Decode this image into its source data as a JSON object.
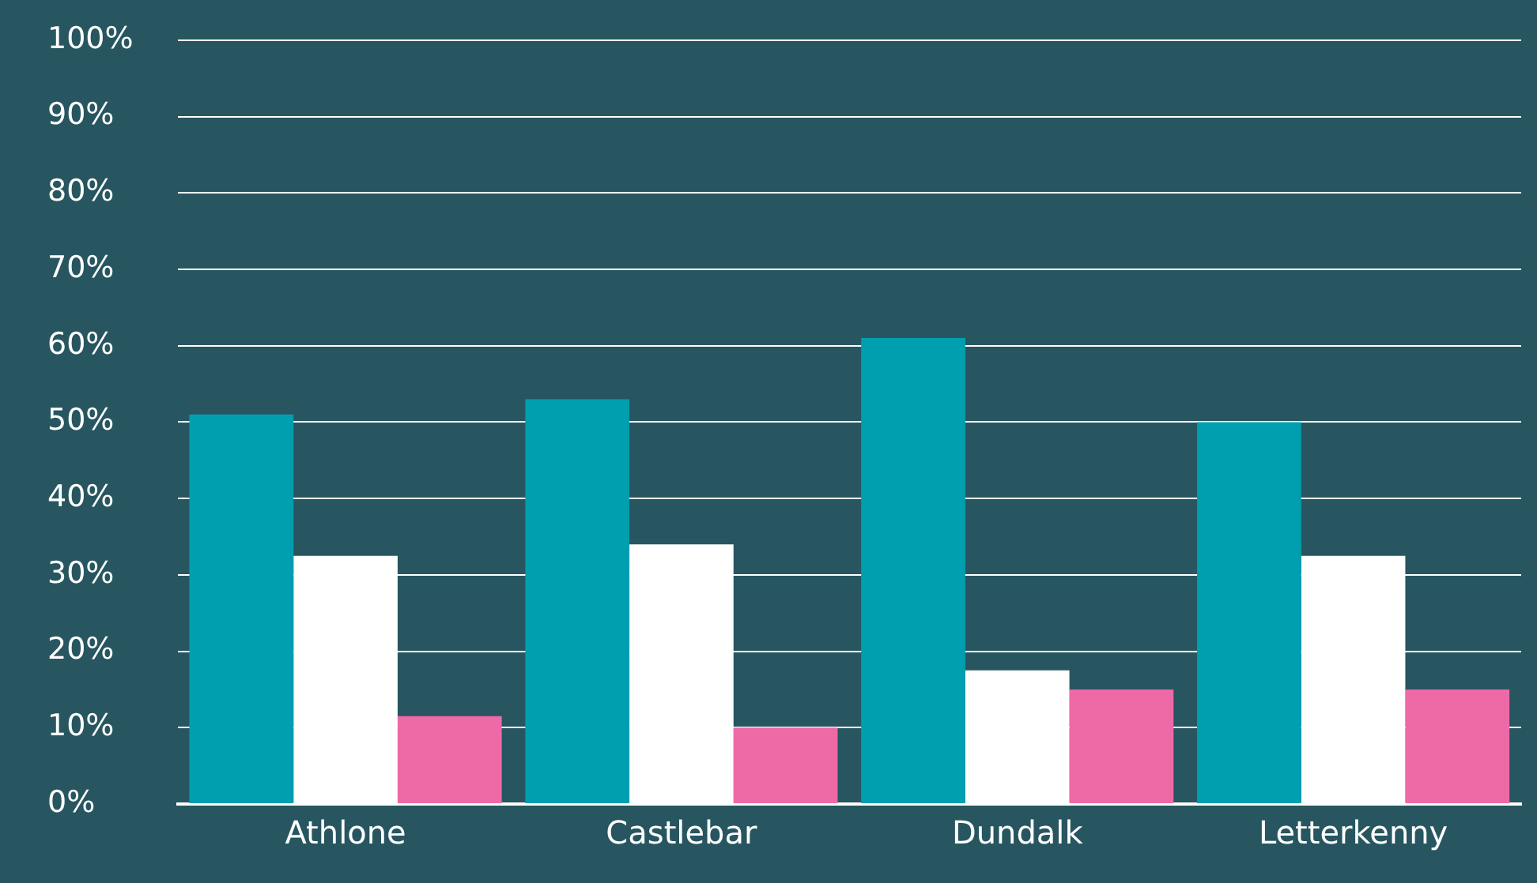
{
  "chart_data": {
    "type": "bar",
    "categories": [
      "Athlone",
      "Castlebar",
      "Dundalk",
      "Letterkenny"
    ],
    "series": [
      {
        "color": "#009fb0",
        "values": [
          51,
          53,
          61,
          50
        ]
      },
      {
        "color": "#ffffff",
        "values": [
          32.5,
          34,
          17.5,
          32.5
        ]
      },
      {
        "color": "#ee6aa7",
        "values": [
          11.5,
          10,
          15,
          15
        ]
      }
    ],
    "ylim": [
      0,
      100
    ],
    "yticks": [
      {
        "value": 0,
        "label": "0%"
      },
      {
        "value": 10,
        "label": "10%"
      },
      {
        "value": 20,
        "label": "20%"
      },
      {
        "value": 30,
        "label": "30%"
      },
      {
        "value": 40,
        "label": "40%"
      },
      {
        "value": 50,
        "label": "50%"
      },
      {
        "value": 60,
        "label": "60%"
      },
      {
        "value": 70,
        "label": "70%"
      },
      {
        "value": 80,
        "label": "80%"
      },
      {
        "value": 90,
        "label": "90%"
      },
      {
        "value": 100,
        "label": "100%"
      }
    ],
    "grid": "y",
    "legend": false
  }
}
